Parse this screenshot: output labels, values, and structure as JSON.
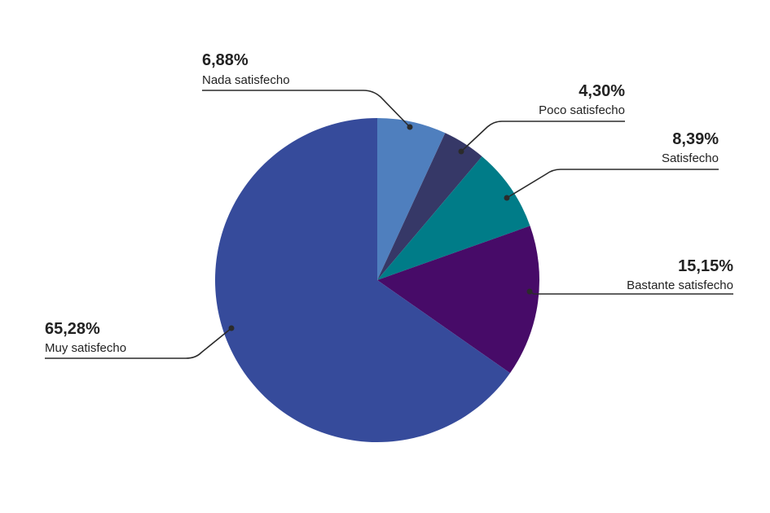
{
  "chart_data": {
    "type": "pie",
    "title": "",
    "legend": "none",
    "slices": [
      {
        "label": "Nada satisfecho",
        "value": 6.88,
        "display": "6,88%",
        "color": "#4f7fbe"
      },
      {
        "label": "Poco satisfecho",
        "value": 4.3,
        "display": "4,30%",
        "color": "#363867"
      },
      {
        "label": "Satisfecho",
        "value": 8.39,
        "display": "8,39%",
        "color": "#007c88"
      },
      {
        "label": "Bastante satisfecho",
        "value": 15.15,
        "display": "15,15%",
        "color": "#470b68"
      },
      {
        "label": "Muy satisfecho",
        "value": 65.28,
        "display": "65,28%",
        "color": "#364b9b"
      }
    ]
  }
}
